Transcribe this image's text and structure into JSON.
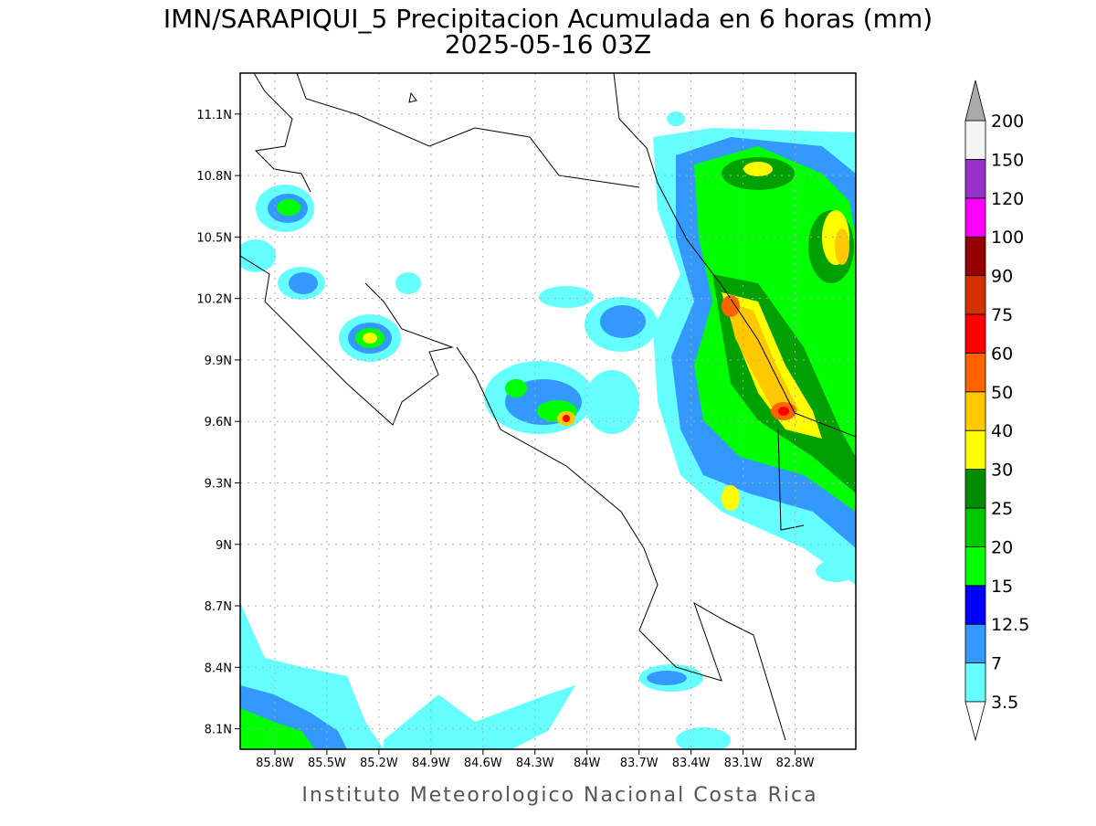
{
  "map": {
    "title": "IMN/SARAPIQUI_5 Precipitacion Acumulada en 6 horas (mm)",
    "subtitle": "2025-05-16 03Z",
    "footer": "Instituto Meteorologico Nacional Costa Rica",
    "xlim": [
      -86.0,
      -82.45
    ],
    "ylim": [
      8.0,
      11.3
    ],
    "xticks": [
      {
        "value": -85.8,
        "label": "85.8W"
      },
      {
        "value": -85.5,
        "label": "85.5W"
      },
      {
        "value": -85.2,
        "label": "85.2W"
      },
      {
        "value": -84.9,
        "label": "84.9W"
      },
      {
        "value": -84.6,
        "label": "84.6W"
      },
      {
        "value": -84.3,
        "label": "84.3W"
      },
      {
        "value": -84.0,
        "label": "84W"
      },
      {
        "value": -83.7,
        "label": "83.7W"
      },
      {
        "value": -83.4,
        "label": "83.4W"
      },
      {
        "value": -83.1,
        "label": "83.1W"
      },
      {
        "value": -82.8,
        "label": "82.8W"
      }
    ],
    "yticks": [
      {
        "value": 8.1,
        "label": "8.1N"
      },
      {
        "value": 8.4,
        "label": "8.4N"
      },
      {
        "value": 8.7,
        "label": "8.7N"
      },
      {
        "value": 9.0,
        "label": "9N"
      },
      {
        "value": 9.3,
        "label": "9.3N"
      },
      {
        "value": 9.6,
        "label": "9.6N"
      },
      {
        "value": 9.9,
        "label": "9.9N"
      },
      {
        "value": 10.2,
        "label": "10.2N"
      },
      {
        "value": 10.5,
        "label": "10.5N"
      },
      {
        "value": 10.8,
        "label": "10.8N"
      },
      {
        "value": 11.1,
        "label": "11.1N"
      }
    ],
    "grid": true,
    "legend": {
      "levels": [
        3.5,
        7,
        12.5,
        15,
        20,
        25,
        30,
        40,
        50,
        60,
        75,
        90,
        100,
        120,
        150,
        200
      ],
      "colors": [
        "#66ffff",
        "#3399ff",
        "#0000ff",
        "#00ff00",
        "#00c800",
        "#008c00",
        "#ffff00",
        "#ffc800",
        "#ff6400",
        "#ff0000",
        "#d23200",
        "#960000",
        "#ff00ff",
        "#9632c8",
        "#f5f5f5"
      ],
      "under_color": "#ffffff",
      "over_color": "#aaaaaa"
    }
  }
}
